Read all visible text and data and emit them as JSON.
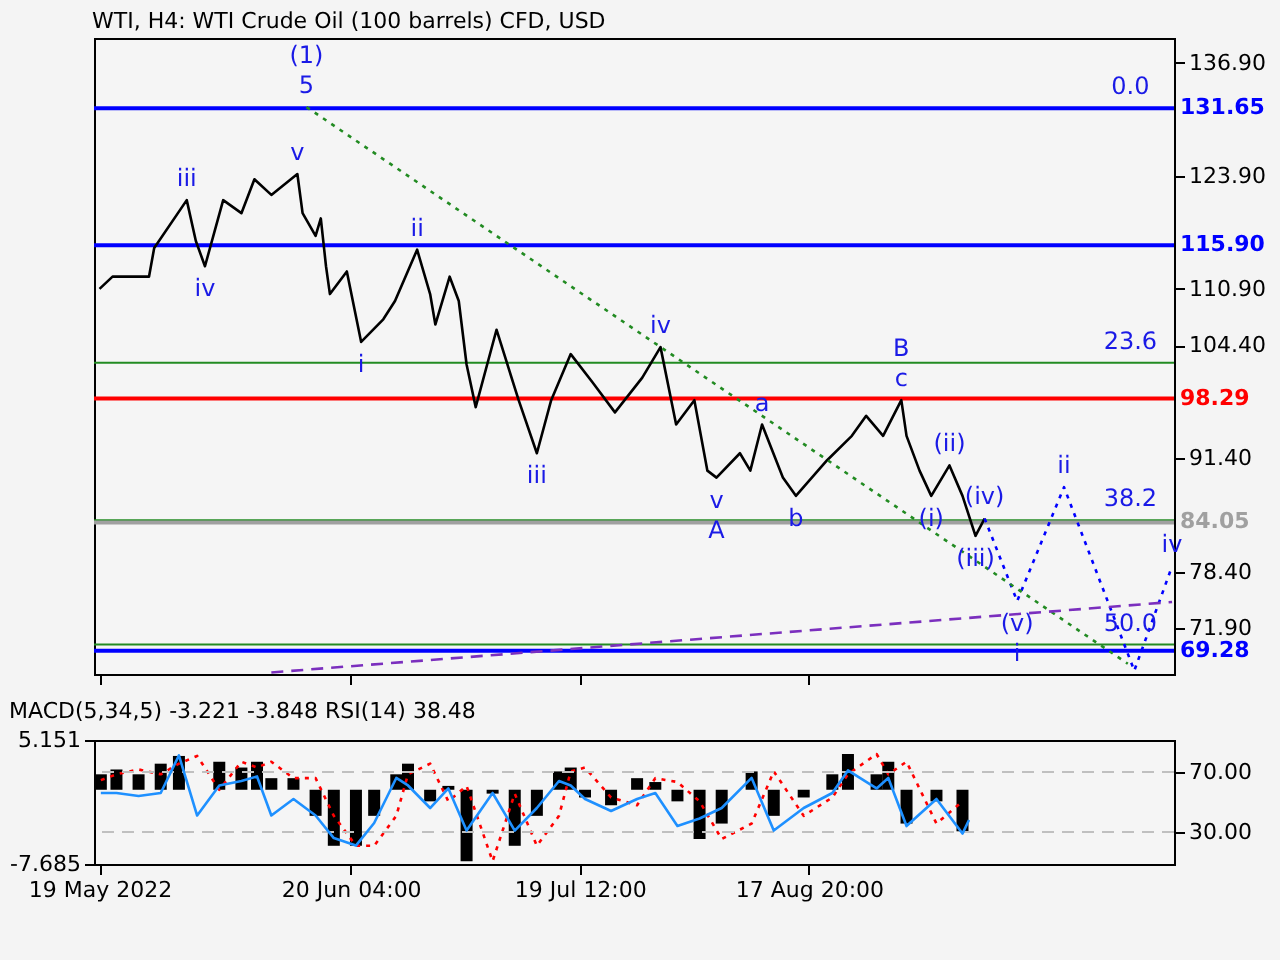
{
  "chart_data": [
    {
      "type": "line",
      "title": "WTI, H4:  WTI Crude Oil (100 barrels) CFD, USD",
      "x": [
        "2022-05-19T00:00",
        "2022-05-20T16:00",
        "2022-05-25T08:00",
        "2022-05-26T00:00",
        "2022-05-30T04:00",
        "2022-05-31T08:00",
        "2022-06-01T12:00",
        "2022-06-03T20:00",
        "2022-06-06T04:00",
        "2022-06-07T20:00",
        "2022-06-10T00:00",
        "2022-06-13T08:00",
        "2022-06-14T00:00",
        "2022-06-15T16:00",
        "2022-06-16T08:00",
        "2022-06-17T00:00",
        "2022-06-17T12:00",
        "2022-06-19T16:00",
        "2022-06-21T12:00",
        "2022-06-24T08:00",
        "2022-06-25T20:00",
        "2022-06-28T16:00",
        "2022-06-30T08:00",
        "2022-07-01T00:00",
        "2022-07-02T20:00",
        "2022-07-04T00:00",
        "2022-07-05T00:00",
        "2022-07-06T04:00",
        "2022-07-08T20:00",
        "2022-07-11T16:00",
        "2022-07-14T00:00",
        "2022-07-15T20:00",
        "2022-07-18T08:00",
        "2022-07-21T04:00",
        "2022-07-24T00:00",
        "2022-07-27T12:00",
        "2022-07-29T20:00",
        "2022-07-31T20:00",
        "2022-08-03T04:00",
        "2022-08-04T20:00",
        "2022-08-06T00:00",
        "2022-08-09T00:00",
        "2022-08-10T08:00",
        "2022-08-11T20:00",
        "2022-08-14T12:00",
        "2022-08-16T04:00",
        "2022-08-20T04:00",
        "2022-08-23T08:00",
        "2022-08-25T04:00",
        "2022-08-27T08:00",
        "2022-08-29T16:00",
        "2022-08-30T08:00",
        "2022-09-01T00:00",
        "2022-09-02T12:00",
        "2022-09-04T20:00",
        "2022-09-06T12:00",
        "2022-09-08T04:00",
        "2022-09-09T08:00"
      ],
      "series": [
        {
          "color": "#000000",
          "values": [
            110.9,
            112.3,
            112.3,
            115.6,
            121.1,
            116.4,
            113.5,
            121.1,
            119.6,
            123.5,
            121.7,
            124.1,
            119.6,
            117.0,
            119.0,
            113.5,
            110.3,
            112.9,
            104.8,
            107.4,
            109.5,
            115.4,
            110.3,
            106.8,
            112.3,
            109.5,
            102.2,
            97.3,
            106.2,
            98.1,
            92.0,
            98.1,
            103.4,
            100.1,
            96.7,
            100.7,
            104.2,
            95.3,
            98.1,
            90.0,
            89.2,
            92.0,
            90.0,
            95.3,
            89.2,
            87.1,
            91.2,
            94.0,
            96.3,
            94.0,
            98.1,
            94.0,
            90.0,
            87.1,
            90.6,
            87.1,
            82.5,
            84.5
          ]
        },
        {
          "type": "line",
          "color": "#0000ff",
          "line_style": "dotted",
          "x": [
            "2022-09-09T08:00",
            "2022-09-13T12:00",
            "2022-09-19T12:00",
            "2022-09-28T12:00",
            "2022-10-03T08:00"
          ],
          "values": [
            84.5,
            75.0,
            88.1,
            67.0,
            79.0
          ]
        },
        {
          "type": "line",
          "color": "#228b22",
          "line_style": "dotted",
          "x": [
            "2022-06-14T12:00",
            "2022-09-27T16:00"
          ],
          "values": [
            131.8,
            67.8
          ]
        },
        {
          "type": "line",
          "color": "#7b2fbe",
          "line_style": "dashed",
          "x": [
            "2022-06-10T00:00",
            "2022-10-03T08:00"
          ],
          "values": [
            66.8,
            74.9
          ]
        }
      ],
      "xlim": [
        "2022-05-18T07:00",
        "2022-10-03T14:00"
      ],
      "xticks": [
        {
          "value": "2022-05-19T00:00",
          "label": null
        },
        {
          "value": "2022-06-20T04:00",
          "label": null
        },
        {
          "value": "2022-07-19T12:00",
          "label": null
        },
        {
          "value": "2022-08-17T20:00",
          "label": null
        }
      ],
      "ylim": [
        66.62,
        139.74
      ],
      "yticks": [
        {
          "value": 136.9,
          "label": "136.90"
        },
        {
          "value": 123.9,
          "label": "123.90"
        },
        {
          "value": 110.9,
          "label": "110.90"
        },
        {
          "value": 104.4,
          "label": "104.40"
        },
        {
          "value": 91.4,
          "label": "91.40"
        },
        {
          "value": 78.4,
          "label": "78.40"
        },
        {
          "value": 71.9,
          "label": "71.90"
        }
      ],
      "tick_labels": "y",
      "ref_lines": [
        {
          "axis": "y",
          "value": 102.4,
          "color": "#228b22",
          "line_style": "solid"
        },
        {
          "axis": "y",
          "value": 84.3,
          "color": "#228b22",
          "line_style": "solid"
        },
        {
          "axis": "y",
          "value": 70.0,
          "color": "#228b22",
          "line_style": "solid"
        },
        {
          "axis": "y",
          "value": 131.65,
          "label": "131.65",
          "color": "#0000ff"
        },
        {
          "axis": "y",
          "value": 115.9,
          "label": "115.90",
          "color": "#0000ff"
        },
        {
          "axis": "y",
          "value": 98.29,
          "label": "98.29",
          "color": "#ff0000"
        },
        {
          "axis": "y",
          "value": 84.05,
          "label": "84.05",
          "color": "#a0a0a0"
        },
        {
          "axis": "y",
          "value": 69.28,
          "label": "69.28",
          "color": "#0000ff"
        }
      ],
      "annotations": [
        {
          "text": "5",
          "x": "2022-06-14T12:00",
          "y": 131.8
        },
        {
          "text": "(1)",
          "x": "2022-06-14T12:00",
          "y": 131.8
        },
        {
          "text": "v",
          "x": "2022-06-13T08:00",
          "y": 124.1
        },
        {
          "text": "iii",
          "x": "2022-05-30T04:00",
          "y": 121.1
        },
        {
          "text": "iv",
          "x": "2022-06-01T12:00",
          "y": 113.5
        },
        {
          "text": "ii",
          "x": "2022-06-28T16:00",
          "y": 115.4
        },
        {
          "text": "i",
          "x": "2022-06-21T12:00",
          "y": 104.8
        },
        {
          "text": "iii",
          "x": "2022-07-14T00:00",
          "y": 92.0
        },
        {
          "text": "iv",
          "x": "2022-07-29T20:00",
          "y": 104.2
        },
        {
          "text": "v",
          "x": "2022-08-06T00:00",
          "y": 89.2
        },
        {
          "text": "A",
          "x": "2022-08-06T00:00",
          "y": 89.2
        },
        {
          "text": "a",
          "x": "2022-08-11T20:00",
          "y": 95.3
        },
        {
          "text": "b",
          "x": "2022-08-16T04:00",
          "y": 87.1
        },
        {
          "text": "c",
          "x": "2022-08-29T16:00",
          "y": 98.1
        },
        {
          "text": "B",
          "x": "2022-08-29T16:00",
          "y": 98.1
        },
        {
          "text": "(i)",
          "x": "2022-09-02T12:00",
          "y": 87.1
        },
        {
          "text": "(ii)",
          "x": "2022-09-04T20:00",
          "y": 90.6
        },
        {
          "text": "(iii)",
          "x": "2022-09-08T04:00",
          "y": 82.5
        },
        {
          "text": "(iv)",
          "x": "2022-09-09T08:00",
          "y": 84.5
        },
        {
          "text": "(v)",
          "x": "2022-09-13T12:00",
          "y": 75.0
        },
        {
          "text": "i",
          "x": "2022-09-13T12:00",
          "y": 75.0
        },
        {
          "text": "ii",
          "x": "2022-09-19T12:00",
          "y": 88.1
        },
        {
          "text": "iv",
          "x": "2022-10-03T08:00",
          "y": 79.0
        },
        {
          "text": "0.0",
          "x": "2022-09-28T00:00",
          "y": 131.65
        },
        {
          "text": "23.6",
          "x": "2022-09-28T00:00",
          "y": 102.4
        },
        {
          "text": "38.2",
          "x": "2022-09-28T00:00",
          "y": 84.3
        },
        {
          "text": "50.0",
          "x": "2022-09-28T00:00",
          "y": 70.0
        }
      ]
    },
    {
      "type": "bar",
      "title": "MACD(5,34,5) -3.221 -3.848 RSI(14) 38.48",
      "x": [
        "2022-05-19T04:00",
        "2022-05-21T04:00",
        "2022-05-24T00:00",
        "2022-05-26T20:00",
        "2022-05-29T04:00",
        "2022-05-31T12:00",
        "2022-06-03T08:00",
        "2022-06-06T04:00",
        "2022-06-08T04:00",
        "2022-06-10T00:00",
        "2022-06-12T20:00",
        "2022-06-15T16:00",
        "2022-06-18T00:00",
        "2022-06-20T20:00",
        "2022-06-23T04:00",
        "2022-06-26T00:00",
        "2022-06-27T12:00",
        "2022-06-30T08:00",
        "2022-07-02T16:00",
        "2022-07-05T00:00",
        "2022-07-08T08:00",
        "2022-07-11T04:00",
        "2022-07-14T00:00",
        "2022-07-16T20:00",
        "2022-07-18T08:00",
        "2022-07-20T04:00",
        "2022-07-23T12:00",
        "2022-07-26T20:00",
        "2022-07-29T04:00",
        "2022-08-01T00:00",
        "2022-08-03T20:00",
        "2022-08-06T16:00",
        "2022-08-10T12:00",
        "2022-08-13T08:00",
        "2022-08-17T04:00",
        "2022-08-20T20:00",
        "2022-08-22T20:00",
        "2022-08-26T12:00",
        "2022-08-28T00:00",
        "2022-08-30T08:00",
        "2022-09-03T04:00",
        "2022-09-06T12:00"
      ],
      "series": [
        {
          "color": "#000000",
          "values": [
            1.6,
            2.1,
            1.6,
            2.7,
            3.5,
            0.0,
            2.9,
            2.3,
            2.9,
            1.2,
            1.2,
            -2.7,
            -5.8,
            -5.8,
            -2.7,
            1.6,
            2.7,
            -1.2,
            0.4,
            -7.4,
            -0.4,
            -5.8,
            -2.7,
            1.9,
            2.3,
            -0.8,
            -1.6,
            1.2,
            0.8,
            -1.2,
            -5.1,
            -3.5,
            1.9,
            -2.7,
            -0.8,
            1.6,
            3.7,
            1.6,
            2.9,
            -3.5,
            -1.2,
            -4.3
          ]
        },
        {
          "type": "line",
          "color": "#ff0000",
          "line_style": "dotted",
          "values": [
            1.0,
            1.6,
            2.1,
            1.6,
            2.7,
            3.5,
            0.0,
            2.9,
            2.3,
            2.9,
            1.2,
            1.2,
            -2.7,
            -5.8,
            -5.8,
            -2.7,
            1.6,
            2.7,
            -1.2,
            0.4,
            -7.4,
            -0.4,
            -5.8,
            -2.7,
            1.9,
            2.3,
            -0.8,
            -1.6,
            1.2,
            0.8,
            -1.2,
            -5.1,
            -3.5,
            1.9,
            -2.7,
            -0.8,
            1.6,
            3.7,
            1.6,
            2.9,
            -3.5,
            -1.2
          ]
        },
        {
          "type": "line",
          "color": "#1e90ff",
          "axis": "y2",
          "x": [
            "2022-05-19T04:00",
            "2022-05-21T04:00",
            "2022-05-24T00:00",
            "2022-05-26T20:00",
            "2022-05-29T04:00",
            "2022-05-31T12:00",
            "2022-06-03T08:00",
            "2022-06-06T04:00",
            "2022-06-08T04:00",
            "2022-06-10T00:00",
            "2022-06-12T20:00",
            "2022-06-15T16:00",
            "2022-06-18T00:00",
            "2022-06-20T20:00",
            "2022-06-23T04:00",
            "2022-06-26T00:00",
            "2022-06-27T12:00",
            "2022-06-30T08:00",
            "2022-07-02T16:00",
            "2022-07-05T00:00",
            "2022-07-08T08:00",
            "2022-07-11T04:00",
            "2022-07-14T00:00",
            "2022-07-16T20:00",
            "2022-07-18T08:00",
            "2022-07-20T04:00",
            "2022-07-23T12:00",
            "2022-07-26T20:00",
            "2022-07-29T04:00",
            "2022-08-01T00:00",
            "2022-08-03T20:00",
            "2022-08-06T16:00",
            "2022-08-10T12:00",
            "2022-08-13T08:00",
            "2022-08-17T04:00",
            "2022-08-20T20:00",
            "2022-08-22T20:00",
            "2022-08-26T12:00",
            "2022-08-28T00:00",
            "2022-08-30T08:00",
            "2022-09-03T04:00",
            "2022-09-06T12:00",
            "2022-09-07T08:00"
          ],
          "values": [
            56,
            56,
            54,
            56,
            81,
            41,
            61,
            64,
            67,
            41,
            52,
            41,
            26,
            21,
            36,
            66,
            61,
            46,
            59,
            31,
            56,
            31,
            46,
            64,
            61,
            52,
            44,
            52,
            56,
            34,
            39,
            46,
            66,
            31,
            46,
            56,
            71,
            59,
            66,
            34,
            52,
            29,
            38
          ]
        }
      ],
      "xlim": [
        "2022-05-18T07:00",
        "2022-10-03T14:00"
      ],
      "xticks": [
        {
          "value": "2022-05-19T00:00",
          "label": "19 May 2022"
        },
        {
          "value": "2022-06-20T04:00",
          "label": "20 Jun 04:00"
        },
        {
          "value": "2022-07-19T12:00",
          "label": "19 Jul 12:00"
        },
        {
          "value": "2022-08-17T20:00",
          "label": "17 Aug 20:00"
        }
      ],
      "ylim": [
        -7.685,
        5.151
      ],
      "yticks": [
        5.151,
        -7.685
      ],
      "y2lim": [
        8.75,
        91.25
      ],
      "y2ticks": [
        {
          "value": 70,
          "label": "70.00"
        },
        {
          "value": 30,
          "label": "30.00"
        }
      ],
      "ref_lines": [
        {
          "axis": "y2",
          "value": 70,
          "color": "#c0c0c0",
          "line_style": "dashed"
        },
        {
          "axis": "y2",
          "value": 30,
          "color": "#c0c0c0",
          "line_style": "dashed"
        }
      ]
    }
  ]
}
